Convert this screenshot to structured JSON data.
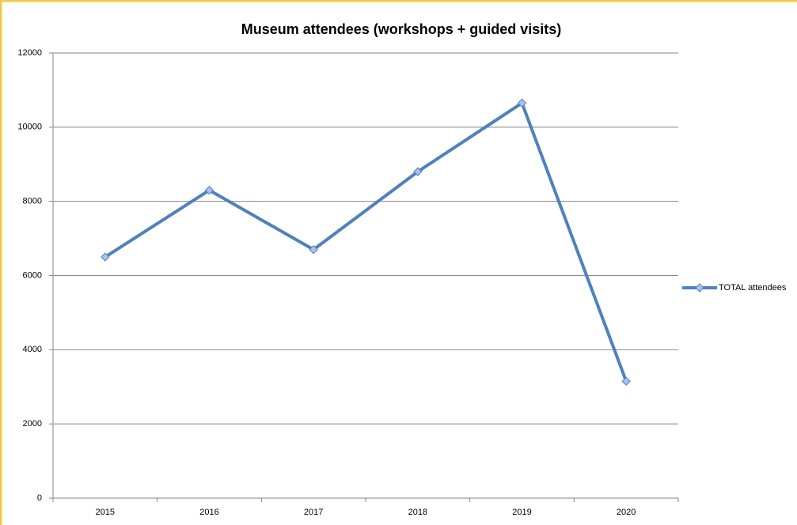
{
  "chart_data": {
    "type": "line",
    "title": "Museum attendees (workshops + guided visits)",
    "categories": [
      "2015",
      "2016",
      "2017",
      "2018",
      "2019",
      "2020"
    ],
    "series": [
      {
        "name": "TOTAL attendees",
        "color": "#4f81bd",
        "values": [
          6500,
          8300,
          6700,
          8800,
          10650,
          3150
        ]
      }
    ],
    "ylim": [
      0,
      12000
    ],
    "yticks": [
      0,
      2000,
      4000,
      6000,
      8000,
      10000,
      12000
    ],
    "grid": true,
    "legend": "right"
  }
}
